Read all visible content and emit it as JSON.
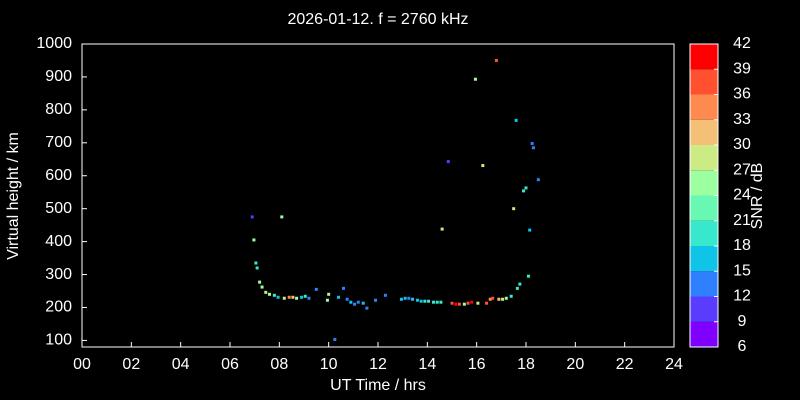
{
  "chart_data": {
    "type": "scatter",
    "title": "2026-01-12. f = 2760 kHz",
    "x_label": "UT Time / hrs",
    "y_label": "Virtual height / km",
    "xlim": [
      0,
      24
    ],
    "xticks": [
      {
        "value": 0,
        "label": "00"
      },
      {
        "value": 2,
        "label": "02"
      },
      {
        "value": 4,
        "label": "04"
      },
      {
        "value": 6,
        "label": "06"
      },
      {
        "value": 8,
        "label": "08"
      },
      10,
      12,
      14,
      16,
      18,
      20,
      22,
      24
    ],
    "ylim": [
      80,
      1000
    ],
    "yticks": [
      100,
      200,
      300,
      400,
      500,
      600,
      700,
      800,
      900,
      1000
    ],
    "x": [
      6.9,
      6.97,
      7.05,
      7.1,
      7.2,
      7.3,
      7.45,
      7.6,
      7.8,
      7.95,
      8.1,
      8.2,
      8.4,
      8.55,
      8.7,
      8.9,
      9.05,
      9.2,
      9.5,
      9.95,
      10.0,
      10.25,
      10.4,
      10.6,
      10.75,
      10.9,
      11.05,
      11.2,
      11.4,
      11.55,
      11.9,
      12.3,
      12.95,
      13.1,
      13.25,
      13.4,
      13.6,
      13.75,
      13.9,
      14.05,
      14.25,
      14.4,
      14.55,
      14.6,
      14.85,
      15.0,
      15.15,
      15.3,
      15.5,
      15.65,
      15.8,
      15.95,
      16.05,
      16.25,
      16.4,
      16.55,
      16.65,
      16.8,
      16.9,
      17.05,
      17.2,
      17.4,
      17.5,
      17.6,
      17.65,
      17.75,
      17.9,
      18.0,
      18.1,
      18.15,
      18.25,
      18.3,
      18.5
    ],
    "y": [
      475,
      405,
      335,
      320,
      277,
      262,
      246,
      240,
      237,
      231,
      475,
      228,
      231,
      231,
      228,
      231,
      234,
      228,
      255,
      222,
      240,
      103,
      231,
      258,
      225,
      216,
      210,
      216,
      213,
      198,
      222,
      237,
      225,
      228,
      228,
      225,
      222,
      219,
      219,
      219,
      216,
      216,
      216,
      438,
      643,
      213,
      210,
      210,
      210,
      213,
      216,
      893,
      213,
      631,
      213,
      225,
      228,
      950,
      225,
      225,
      228,
      234,
      500,
      768,
      258,
      271,
      554,
      563,
      295,
      435,
      698,
      685,
      588
    ],
    "snr": [
      10,
      24,
      20,
      20,
      24,
      24,
      28,
      24,
      20,
      15,
      24,
      27,
      33,
      30,
      24,
      15,
      20,
      13,
      13,
      24,
      27,
      13,
      16,
      13,
      13,
      16,
      13,
      13,
      16,
      13,
      13,
      13,
      16,
      16,
      13,
      16,
      16,
      16,
      19,
      20,
      20,
      19,
      20,
      27,
      10,
      37,
      40,
      37,
      24,
      37,
      40,
      24,
      27,
      27,
      37,
      33,
      37,
      37,
      31,
      27,
      24,
      20,
      27,
      16,
      20,
      20,
      20,
      20,
      20,
      16,
      13,
      13,
      13
    ],
    "colorbar": {
      "label": "SNR / dB",
      "ticks": [
        6,
        9,
        12,
        15,
        18,
        21,
        24,
        27,
        30,
        33,
        36,
        39,
        42
      ],
      "colors": [
        "#8000ff",
        "#5a3cff",
        "#2f80ff",
        "#10c4e8",
        "#38e8cc",
        "#68f8b4",
        "#9cffa0",
        "#cceb84",
        "#f4c078",
        "#ff8a50",
        "#ff5030",
        "#ff0000"
      ]
    }
  }
}
